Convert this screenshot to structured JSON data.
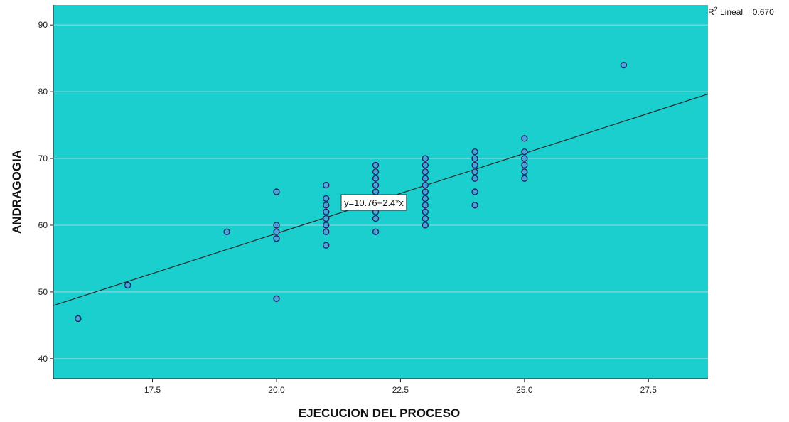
{
  "chart_data": {
    "type": "scatter",
    "xlabel": "EJECUCION DEL PROCESO",
    "ylabel": "ANDRAGOGIA",
    "xlim": [
      15.5,
      28.7
    ],
    "ylim": [
      37,
      93
    ],
    "x_ticks": [
      17.5,
      20.0,
      22.5,
      25.0,
      27.5
    ],
    "x_tick_labels": [
      "17.5",
      "20.0",
      "22.5",
      "25.0",
      "27.5"
    ],
    "y_ticks": [
      40,
      50,
      60,
      70,
      80,
      90
    ],
    "y_tick_labels": [
      "40",
      "50",
      "60",
      "70",
      "80",
      "90"
    ],
    "grid": "horizontal",
    "plot_background": "#1ccfcf",
    "marker_fill": "#4aa3e0",
    "marker_edge": "#1a2a5a",
    "fit_line_color": "#1e2a2a",
    "points": [
      [
        16,
        46
      ],
      [
        17,
        51
      ],
      [
        19,
        59
      ],
      [
        20,
        65
      ],
      [
        20,
        60
      ],
      [
        20,
        59
      ],
      [
        20,
        58
      ],
      [
        20,
        49
      ],
      [
        21,
        66
      ],
      [
        21,
        64
      ],
      [
        21,
        63
      ],
      [
        21,
        62
      ],
      [
        21,
        61
      ],
      [
        21,
        60
      ],
      [
        21,
        59
      ],
      [
        21,
        57
      ],
      [
        22,
        69
      ],
      [
        22,
        68
      ],
      [
        22,
        67
      ],
      [
        22,
        66
      ],
      [
        22,
        65
      ],
      [
        22,
        63
      ],
      [
        22,
        62
      ],
      [
        22,
        61
      ],
      [
        22,
        59
      ],
      [
        23,
        70
      ],
      [
        23,
        69
      ],
      [
        23,
        68
      ],
      [
        23,
        67
      ],
      [
        23,
        66
      ],
      [
        23,
        65
      ],
      [
        23,
        64
      ],
      [
        23,
        63
      ],
      [
        23,
        62
      ],
      [
        23,
        61
      ],
      [
        23,
        60
      ],
      [
        24,
        71
      ],
      [
        24,
        70
      ],
      [
        24,
        69
      ],
      [
        24,
        68
      ],
      [
        24,
        67
      ],
      [
        24,
        65
      ],
      [
        24,
        63
      ],
      [
        25,
        73
      ],
      [
        25,
        71
      ],
      [
        25,
        70
      ],
      [
        25,
        69
      ],
      [
        25,
        68
      ],
      [
        25,
        67
      ],
      [
        27,
        84
      ]
    ],
    "fit": {
      "intercept": 10.76,
      "slope": 2.4
    },
    "fit_label": "y=10.76+2.4*x",
    "r2_label_base": "R",
    "r2_label_sup": "2",
    "r2_label_rest": " Lineal = 0.670"
  }
}
